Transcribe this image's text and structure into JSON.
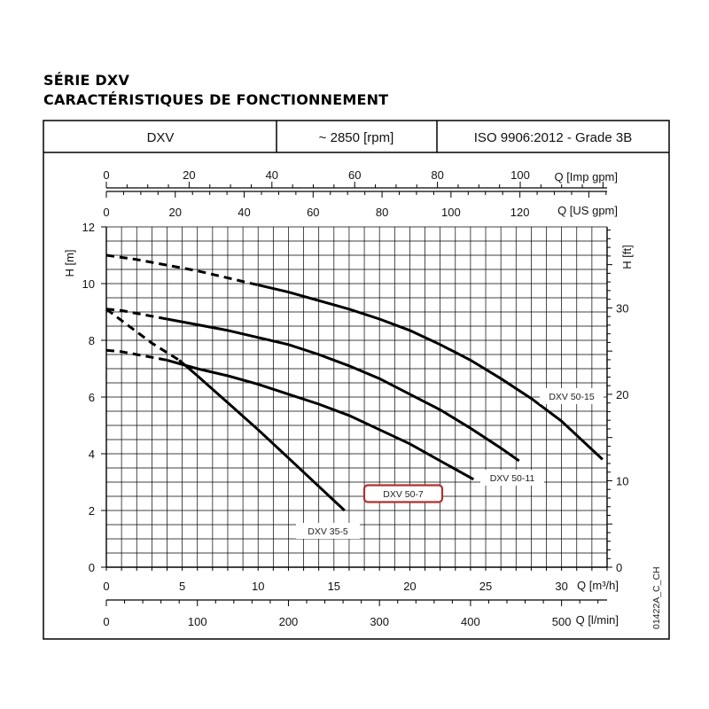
{
  "titles": {
    "line1": "SÉRIE DXV",
    "line2": "CARACTÉRISTIQUES DE FONCTIONNEMENT"
  },
  "header": {
    "model": "DXV",
    "speed": "~ 2850 [rpm]",
    "standard": "ISO 9906:2012 - Grade 3B"
  },
  "figure_code": "01422A_C_CH",
  "colors": {
    "highlight_box": "#b03030",
    "curve": "#000000",
    "grid": "#000000"
  },
  "chart_data": {
    "type": "line",
    "grid": true,
    "x_axis": {
      "label": "Q [m³/h]",
      "range": [
        0,
        33
      ],
      "ticks": [
        0,
        5,
        10,
        15,
        20,
        25,
        30
      ]
    },
    "x_axis_lmin": {
      "label": "Q [l/min]",
      "ticks": [
        0,
        100,
        200,
        300,
        400,
        500
      ]
    },
    "x_axis_us_gpm": {
      "label": "Q [US gpm]",
      "ticks": [
        0,
        20,
        40,
        60,
        80,
        100,
        120
      ]
    },
    "x_axis_imp_gpm": {
      "label": "Q [Imp gpm]",
      "ticks": [
        0,
        20,
        40,
        60,
        80,
        100
      ]
    },
    "y_axis": {
      "label": "H [m]",
      "range": [
        0,
        12
      ],
      "ticks": [
        0,
        2,
        4,
        6,
        8,
        10,
        12
      ]
    },
    "y_axis_right": {
      "label": "H [ft]",
      "ticks": [
        0,
        10,
        20,
        30
      ]
    },
    "series": [
      {
        "name": "DXV 50-15",
        "dashed": {
          "x": [
            0,
            2,
            4,
            6,
            8,
            10
          ],
          "y": [
            11.0,
            10.85,
            10.65,
            10.45,
            10.2,
            9.95
          ]
        },
        "solid": {
          "x": [
            10,
            12,
            14,
            16,
            18,
            20,
            22,
            24,
            26,
            28,
            30,
            32.7
          ],
          "y": [
            9.95,
            9.7,
            9.4,
            9.1,
            8.75,
            8.35,
            7.85,
            7.3,
            6.65,
            5.95,
            5.15,
            3.8
          ]
        }
      },
      {
        "name": "DXV 50-11",
        "dashed": {
          "x": [
            0,
            1,
            2,
            3,
            4
          ],
          "y": [
            9.1,
            9.05,
            8.95,
            8.85,
            8.75
          ]
        },
        "solid": {
          "x": [
            4,
            6,
            8,
            10,
            12,
            14,
            16,
            18,
            20,
            22,
            24,
            26,
            27.2
          ],
          "y": [
            8.75,
            8.55,
            8.35,
            8.1,
            7.85,
            7.5,
            7.1,
            6.65,
            6.1,
            5.55,
            4.9,
            4.2,
            3.75
          ]
        }
      },
      {
        "name": "DXV 50-7",
        "dashed": {
          "x": [
            0,
            1,
            2,
            3,
            4
          ],
          "y": [
            7.65,
            7.6,
            7.5,
            7.4,
            7.3
          ]
        },
        "solid": {
          "x": [
            4,
            6,
            8,
            10,
            12,
            14,
            16,
            18,
            20,
            22,
            24.2
          ],
          "y": [
            7.3,
            7.0,
            6.75,
            6.45,
            6.1,
            5.75,
            5.35,
            4.85,
            4.35,
            3.75,
            3.1
          ]
        }
      },
      {
        "name": "DXV 35-5",
        "dashed": {
          "x": [
            0,
            1,
            2,
            3,
            4.8
          ],
          "y": [
            9.1,
            8.7,
            8.3,
            7.9,
            7.3
          ]
        },
        "solid": {
          "x": [
            4.8,
            6,
            8,
            10,
            12,
            14,
            15.7
          ],
          "y": [
            7.3,
            6.75,
            5.8,
            4.85,
            3.85,
            2.85,
            2.0
          ]
        }
      }
    ]
  }
}
